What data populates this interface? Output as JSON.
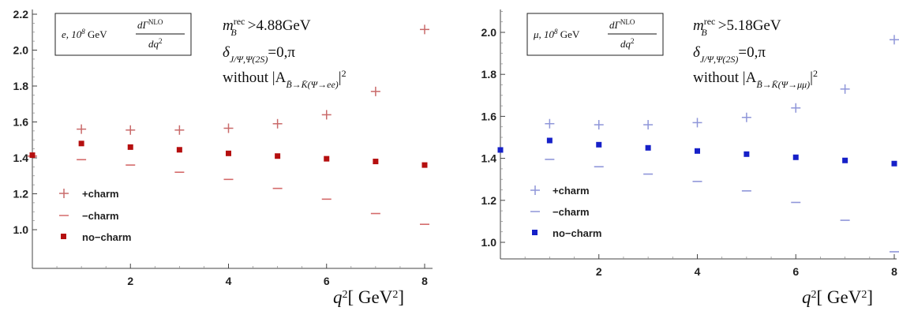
{
  "chart_data": [
    {
      "type": "scatter",
      "title": "",
      "box": {
        "line1": "e, 10",
        "line1_sup": "8",
        "line1_mid": " GeV ",
        "numerator": "dΓ",
        "numerator_sup": "NLO",
        "denominator": "dq",
        "denominator_sup": "2"
      },
      "annotations": {
        "line1": "m",
        "line1_sup": "rec",
        "line1_sub": "B",
        "line1_tail": ">4.88GeV",
        "line2": "δ",
        "line2_sub": "J/Ψ,Ψ(2S)",
        "line2_tail": "=0,π",
        "line3": "without |A",
        "line3_sub": "B̄→K̄(Ψ→ee)",
        "line3_tail": "|",
        "line3_sup": "2"
      },
      "xlabel": "q",
      "xlabel_sup": "2",
      "xlabel_unit": "[ GeV",
      "xlabel_unit_sup": "2",
      "xlabel_close": "]",
      "xlim": [
        0,
        8.2
      ],
      "ylim": [
        0.8,
        2.2
      ],
      "x_ticks": [
        "2",
        "4",
        "6",
        "8"
      ],
      "y_ticks": [
        "1.0",
        "1.2",
        "1.4",
        "1.6",
        "1.8",
        "2.0",
        "2.2"
      ],
      "series": [
        {
          "name": "+charm",
          "marker": "plus",
          "color": "#c96a6a",
          "x": [
            1,
            2,
            3,
            4,
            5,
            6,
            7,
            8
          ],
          "y": [
            1.56,
            1.555,
            1.555,
            1.565,
            1.59,
            1.64,
            1.77,
            2.115
          ]
        },
        {
          "name": "−charm",
          "marker": "dash",
          "color": "#d46a6a",
          "x": [
            0,
            1,
            2,
            3,
            4,
            5,
            6,
            7,
            8
          ],
          "y": [
            1.41,
            1.39,
            1.36,
            1.32,
            1.28,
            1.23,
            1.17,
            1.09,
            1.03
          ]
        },
        {
          "name": "no−charm",
          "marker": "square",
          "color": "#b50f0f",
          "x": [
            0,
            1,
            2,
            3,
            4,
            5,
            6,
            7,
            8
          ],
          "y": [
            1.415,
            1.48,
            1.46,
            1.445,
            1.425,
            1.41,
            1.395,
            1.38,
            1.36
          ]
        }
      ]
    },
    {
      "type": "scatter",
      "title": "",
      "box": {
        "line1": "μ, 10",
        "line1_sup": "8",
        "line1_mid": " GeV ",
        "numerator": "dΓ",
        "numerator_sup": "NLO",
        "denominator": "dq",
        "denominator_sup": "2"
      },
      "annotations": {
        "line1": "m",
        "line1_sup": "rec",
        "line1_sub": "B",
        "line1_tail": ">5.18GeV",
        "line2": "δ",
        "line2_sub": "J/Ψ,Ψ(2S)",
        "line2_tail": "=0,π",
        "line3": "without |A",
        "line3_sub": "B̄→K̄(Ψ→μμ)",
        "line3_tail": "|",
        "line3_sup": "2"
      },
      "xlabel": "q",
      "xlabel_sup": "2",
      "xlabel_unit": "[ GeV",
      "xlabel_unit_sup": "2",
      "xlabel_close": "]",
      "xlim": [
        0,
        8.1
      ],
      "ylim": [
        0.92,
        2.1
      ],
      "x_ticks": [
        "2",
        "4",
        "6",
        "8"
      ],
      "y_ticks": [
        "1.0",
        "1.2",
        "1.4",
        "1.6",
        "1.8",
        "2.0"
      ],
      "series": [
        {
          "name": "+charm",
          "marker": "plus",
          "color": "#8f96d9",
          "x": [
            1,
            2,
            3,
            4,
            5,
            6,
            7,
            8
          ],
          "y": [
            1.565,
            1.56,
            1.56,
            1.57,
            1.595,
            1.64,
            1.73,
            1.965
          ]
        },
        {
          "name": "−charm",
          "marker": "dash",
          "color": "#8f96d9",
          "x": [
            1,
            2,
            3,
            4,
            5,
            6,
            7,
            8
          ],
          "y": [
            1.395,
            1.36,
            1.325,
            1.29,
            1.245,
            1.19,
            1.105,
            0.955
          ]
        },
        {
          "name": "no−charm",
          "marker": "square",
          "color": "#1620c8",
          "x": [
            0,
            1,
            2,
            3,
            4,
            5,
            6,
            7,
            8
          ],
          "y": [
            1.44,
            1.485,
            1.465,
            1.45,
            1.435,
            1.42,
            1.405,
            1.39,
            1.375
          ]
        }
      ]
    }
  ]
}
